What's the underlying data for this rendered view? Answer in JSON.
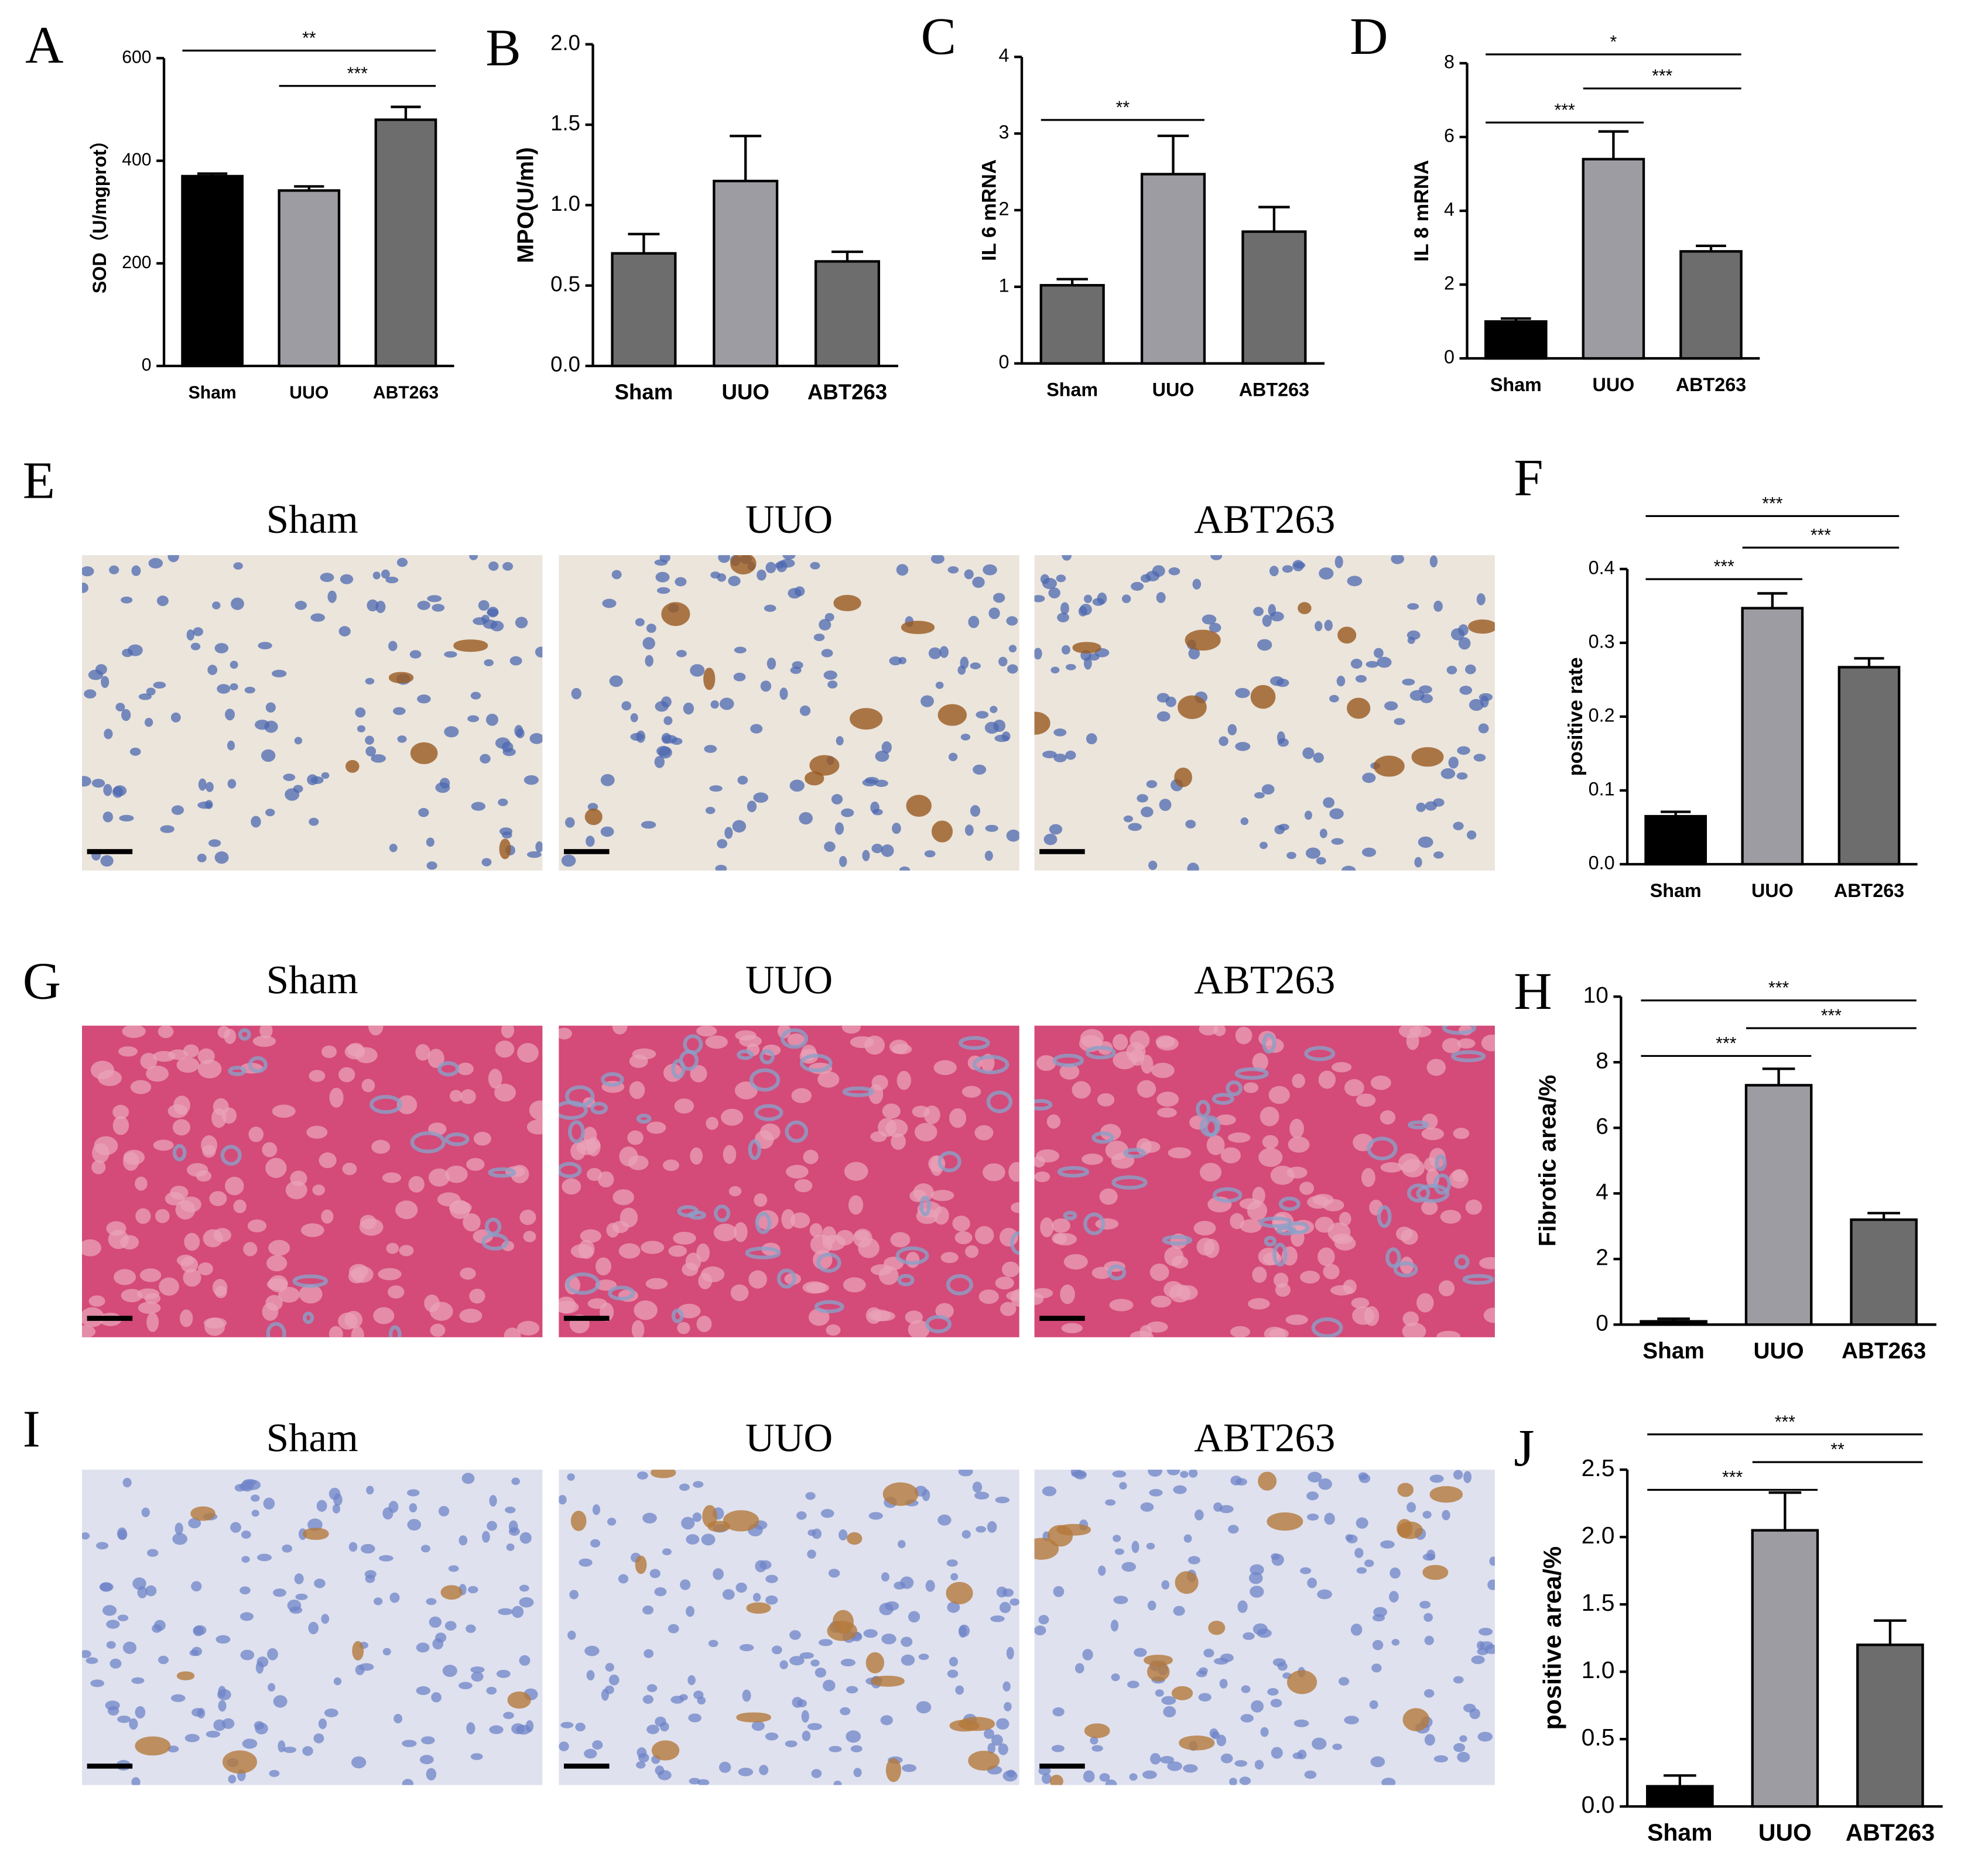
{
  "chart_data": [
    {
      "type": "bar",
      "panel": "A",
      "ylabel": "SOD（U/mgprot）",
      "categories": [
        "Sham",
        "UUO",
        "ABT263"
      ],
      "values": [
        370,
        342,
        480
      ],
      "errors": [
        5,
        8,
        25
      ],
      "colors": [
        "#000000",
        "#9c9ca2",
        "#6d6d6d"
      ],
      "ylim": [
        0,
        600
      ],
      "yticks": [
        0,
        200,
        400,
        600
      ],
      "significance": [
        {
          "label": "**",
          "from": "Sham",
          "to": "ABT263"
        },
        {
          "label": "***",
          "from": "UUO",
          "to": "ABT263"
        }
      ]
    },
    {
      "type": "bar",
      "panel": "B",
      "ylabel": "MPO(U/ml)",
      "categories": [
        "Sham",
        "UUO",
        "ABT263"
      ],
      "values": [
        0.7,
        1.15,
        0.65
      ],
      "errors": [
        0.12,
        0.28,
        0.06
      ],
      "colors": [
        "#6d6d6d",
        "#9c9ca2",
        "#6d6d6d"
      ],
      "ylim": [
        0,
        2
      ],
      "yticks": [
        {
          "value": 0,
          "label": "0.0"
        },
        0.5,
        {
          "value": 1,
          "label": "1.0"
        },
        1.5,
        {
          "value": 2,
          "label": "2.0"
        }
      ],
      "significance": []
    },
    {
      "type": "bar",
      "panel": "C",
      "ylabel": "IL 6 mRNA",
      "categories": [
        "Sham",
        "UUO",
        "ABT263"
      ],
      "values": [
        1.02,
        2.47,
        1.72
      ],
      "errors": [
        0.08,
        0.5,
        0.32
      ],
      "colors": [
        "#6d6d6d",
        "#9c9ca2",
        "#6d6d6d"
      ],
      "ylim": [
        0,
        4
      ],
      "yticks": [
        0,
        1,
        2,
        3,
        4
      ],
      "significance": [
        {
          "label": "**",
          "from": "Sham",
          "to": "UUO"
        }
      ]
    },
    {
      "type": "bar",
      "panel": "D",
      "ylabel": "IL 8 mRNA",
      "categories": [
        "Sham",
        "UUO",
        "ABT263"
      ],
      "values": [
        1.0,
        5.4,
        2.9
      ],
      "errors": [
        0.08,
        0.75,
        0.15
      ],
      "colors": [
        "#000000",
        "#9c9ca2",
        "#6d6d6d"
      ],
      "ylim": [
        0,
        8
      ],
      "yticks": [
        0,
        2,
        4,
        6,
        8
      ],
      "significance": [
        {
          "label": "*",
          "from": "Sham",
          "to": "ABT263"
        },
        {
          "label": "***",
          "from": "UUO",
          "to": "ABT263"
        },
        {
          "label": "***",
          "from": "Sham",
          "to": "UUO"
        }
      ]
    },
    {
      "type": "bar",
      "panel": "F",
      "ylabel": "positive rate",
      "categories": [
        "Sham",
        "UUO",
        "ABT263"
      ],
      "values": [
        0.065,
        0.347,
        0.267
      ],
      "errors": [
        0.006,
        0.02,
        0.012
      ],
      "colors": [
        "#000000",
        "#9c9ca2",
        "#6d6d6d"
      ],
      "ylim": [
        0,
        0.4
      ],
      "yticks": [
        {
          "value": 0,
          "label": "0.0"
        },
        0.1,
        0.2,
        0.3,
        0.4
      ],
      "significance": [
        {
          "label": "***",
          "from": "Sham",
          "to": "ABT263"
        },
        {
          "label": "***",
          "from": "UUO",
          "to": "ABT263"
        },
        {
          "label": "***",
          "from": "Sham",
          "to": "UUO"
        }
      ]
    },
    {
      "type": "bar",
      "panel": "H",
      "ylabel": "Fibrotic area/%",
      "categories": [
        "Sham",
        "UUO",
        "ABT263"
      ],
      "values": [
        0.1,
        7.3,
        3.2
      ],
      "errors": [
        0.08,
        0.5,
        0.2
      ],
      "colors": [
        "#000000",
        "#9c9ca2",
        "#6d6d6d"
      ],
      "ylim": [
        0,
        10
      ],
      "yticks": [
        0,
        2,
        4,
        6,
        8,
        10
      ],
      "significance": [
        {
          "label": "***",
          "from": "Sham",
          "to": "ABT263"
        },
        {
          "label": "***",
          "from": "UUO",
          "to": "ABT263"
        },
        {
          "label": "***",
          "from": "Sham",
          "to": "UUO"
        }
      ]
    },
    {
      "type": "bar",
      "panel": "J",
      "ylabel": "positive area/%",
      "categories": [
        "Sham",
        "UUO",
        "ABT263"
      ],
      "values": [
        0.15,
        2.05,
        1.2
      ],
      "errors": [
        0.08,
        0.28,
        0.18
      ],
      "colors": [
        "#000000",
        "#9c9ca2",
        "#6d6d6d"
      ],
      "ylim": [
        0,
        2.5
      ],
      "yticks": [
        {
          "value": 0,
          "label": "0.0"
        },
        0.5,
        {
          "value": 1,
          "label": "1.0"
        },
        1.5,
        {
          "value": 2,
          "label": "2.0"
        },
        2.5
      ],
      "significance": [
        {
          "label": "***",
          "from": "Sham",
          "to": "ABT263"
        },
        {
          "label": "**",
          "from": "UUO",
          "to": "ABT263"
        },
        {
          "label": "***",
          "from": "Sham",
          "to": "UUO"
        }
      ]
    }
  ],
  "image_panels": [
    {
      "label": "E",
      "columns": [
        "Sham",
        "UUO",
        "ABT263"
      ]
    },
    {
      "label": "G",
      "columns": [
        "Sham",
        "UUO",
        "ABT263"
      ]
    },
    {
      "label": "I",
      "columns": [
        "Sham",
        "UUO",
        "ABT263"
      ]
    }
  ]
}
